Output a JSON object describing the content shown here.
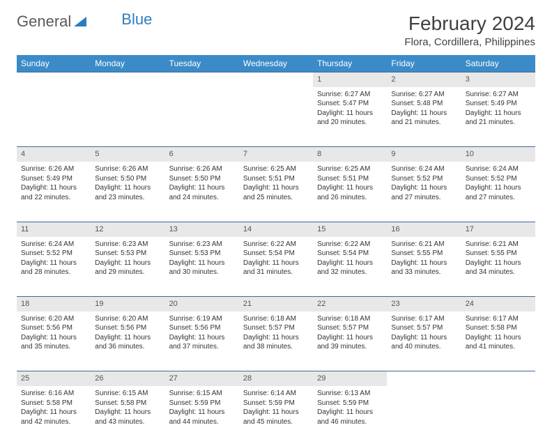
{
  "logo": {
    "text1": "General",
    "text2": "Blue"
  },
  "title": "February 2024",
  "location": "Flora, Cordillera, Philippines",
  "colors": {
    "header_bg": "#3b8bc8",
    "header_text": "#ffffff",
    "daynum_bg": "#e8e8e8",
    "border": "#3b6a9a",
    "logo_gray": "#5a5a5a",
    "logo_blue": "#2e7cc0"
  },
  "typography": {
    "title_fontsize": 28,
    "location_fontsize": 15,
    "header_fontsize": 12,
    "daynum_fontsize": 11,
    "cell_fontsize": 10
  },
  "weekdays": [
    "Sunday",
    "Monday",
    "Tuesday",
    "Wednesday",
    "Thursday",
    "Friday",
    "Saturday"
  ],
  "weeks": [
    [
      null,
      null,
      null,
      null,
      {
        "n": "1",
        "sunrise": "Sunrise: 6:27 AM",
        "sunset": "Sunset: 5:47 PM",
        "d1": "Daylight: 11 hours",
        "d2": "and 20 minutes."
      },
      {
        "n": "2",
        "sunrise": "Sunrise: 6:27 AM",
        "sunset": "Sunset: 5:48 PM",
        "d1": "Daylight: 11 hours",
        "d2": "and 21 minutes."
      },
      {
        "n": "3",
        "sunrise": "Sunrise: 6:27 AM",
        "sunset": "Sunset: 5:49 PM",
        "d1": "Daylight: 11 hours",
        "d2": "and 21 minutes."
      }
    ],
    [
      {
        "n": "4",
        "sunrise": "Sunrise: 6:26 AM",
        "sunset": "Sunset: 5:49 PM",
        "d1": "Daylight: 11 hours",
        "d2": "and 22 minutes."
      },
      {
        "n": "5",
        "sunrise": "Sunrise: 6:26 AM",
        "sunset": "Sunset: 5:50 PM",
        "d1": "Daylight: 11 hours",
        "d2": "and 23 minutes."
      },
      {
        "n": "6",
        "sunrise": "Sunrise: 6:26 AM",
        "sunset": "Sunset: 5:50 PM",
        "d1": "Daylight: 11 hours",
        "d2": "and 24 minutes."
      },
      {
        "n": "7",
        "sunrise": "Sunrise: 6:25 AM",
        "sunset": "Sunset: 5:51 PM",
        "d1": "Daylight: 11 hours",
        "d2": "and 25 minutes."
      },
      {
        "n": "8",
        "sunrise": "Sunrise: 6:25 AM",
        "sunset": "Sunset: 5:51 PM",
        "d1": "Daylight: 11 hours",
        "d2": "and 26 minutes."
      },
      {
        "n": "9",
        "sunrise": "Sunrise: 6:24 AM",
        "sunset": "Sunset: 5:52 PM",
        "d1": "Daylight: 11 hours",
        "d2": "and 27 minutes."
      },
      {
        "n": "10",
        "sunrise": "Sunrise: 6:24 AM",
        "sunset": "Sunset: 5:52 PM",
        "d1": "Daylight: 11 hours",
        "d2": "and 27 minutes."
      }
    ],
    [
      {
        "n": "11",
        "sunrise": "Sunrise: 6:24 AM",
        "sunset": "Sunset: 5:52 PM",
        "d1": "Daylight: 11 hours",
        "d2": "and 28 minutes."
      },
      {
        "n": "12",
        "sunrise": "Sunrise: 6:23 AM",
        "sunset": "Sunset: 5:53 PM",
        "d1": "Daylight: 11 hours",
        "d2": "and 29 minutes."
      },
      {
        "n": "13",
        "sunrise": "Sunrise: 6:23 AM",
        "sunset": "Sunset: 5:53 PM",
        "d1": "Daylight: 11 hours",
        "d2": "and 30 minutes."
      },
      {
        "n": "14",
        "sunrise": "Sunrise: 6:22 AM",
        "sunset": "Sunset: 5:54 PM",
        "d1": "Daylight: 11 hours",
        "d2": "and 31 minutes."
      },
      {
        "n": "15",
        "sunrise": "Sunrise: 6:22 AM",
        "sunset": "Sunset: 5:54 PM",
        "d1": "Daylight: 11 hours",
        "d2": "and 32 minutes."
      },
      {
        "n": "16",
        "sunrise": "Sunrise: 6:21 AM",
        "sunset": "Sunset: 5:55 PM",
        "d1": "Daylight: 11 hours",
        "d2": "and 33 minutes."
      },
      {
        "n": "17",
        "sunrise": "Sunrise: 6:21 AM",
        "sunset": "Sunset: 5:55 PM",
        "d1": "Daylight: 11 hours",
        "d2": "and 34 minutes."
      }
    ],
    [
      {
        "n": "18",
        "sunrise": "Sunrise: 6:20 AM",
        "sunset": "Sunset: 5:56 PM",
        "d1": "Daylight: 11 hours",
        "d2": "and 35 minutes."
      },
      {
        "n": "19",
        "sunrise": "Sunrise: 6:20 AM",
        "sunset": "Sunset: 5:56 PM",
        "d1": "Daylight: 11 hours",
        "d2": "and 36 minutes."
      },
      {
        "n": "20",
        "sunrise": "Sunrise: 6:19 AM",
        "sunset": "Sunset: 5:56 PM",
        "d1": "Daylight: 11 hours",
        "d2": "and 37 minutes."
      },
      {
        "n": "21",
        "sunrise": "Sunrise: 6:18 AM",
        "sunset": "Sunset: 5:57 PM",
        "d1": "Daylight: 11 hours",
        "d2": "and 38 minutes."
      },
      {
        "n": "22",
        "sunrise": "Sunrise: 6:18 AM",
        "sunset": "Sunset: 5:57 PM",
        "d1": "Daylight: 11 hours",
        "d2": "and 39 minutes."
      },
      {
        "n": "23",
        "sunrise": "Sunrise: 6:17 AM",
        "sunset": "Sunset: 5:57 PM",
        "d1": "Daylight: 11 hours",
        "d2": "and 40 minutes."
      },
      {
        "n": "24",
        "sunrise": "Sunrise: 6:17 AM",
        "sunset": "Sunset: 5:58 PM",
        "d1": "Daylight: 11 hours",
        "d2": "and 41 minutes."
      }
    ],
    [
      {
        "n": "25",
        "sunrise": "Sunrise: 6:16 AM",
        "sunset": "Sunset: 5:58 PM",
        "d1": "Daylight: 11 hours",
        "d2": "and 42 minutes."
      },
      {
        "n": "26",
        "sunrise": "Sunrise: 6:15 AM",
        "sunset": "Sunset: 5:58 PM",
        "d1": "Daylight: 11 hours",
        "d2": "and 43 minutes."
      },
      {
        "n": "27",
        "sunrise": "Sunrise: 6:15 AM",
        "sunset": "Sunset: 5:59 PM",
        "d1": "Daylight: 11 hours",
        "d2": "and 44 minutes."
      },
      {
        "n": "28",
        "sunrise": "Sunrise: 6:14 AM",
        "sunset": "Sunset: 5:59 PM",
        "d1": "Daylight: 11 hours",
        "d2": "and 45 minutes."
      },
      {
        "n": "29",
        "sunrise": "Sunrise: 6:13 AM",
        "sunset": "Sunset: 5:59 PM",
        "d1": "Daylight: 11 hours",
        "d2": "and 46 minutes."
      },
      null,
      null
    ]
  ]
}
